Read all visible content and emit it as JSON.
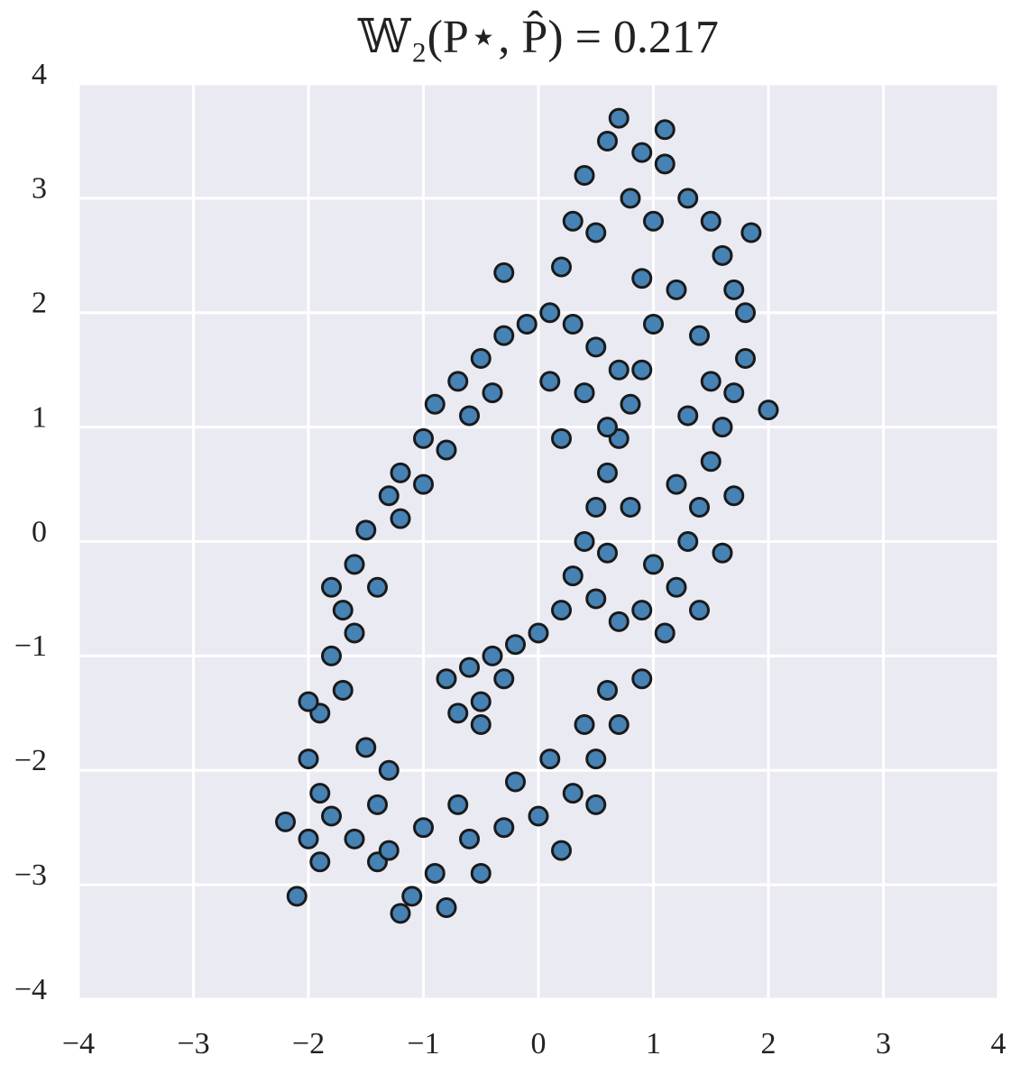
{
  "chart_data": {
    "type": "scatter",
    "title": "𝕎₂(P⋆, P̂) = 0.217",
    "color": "#4682b4",
    "edgecolor": "#1a1a1a",
    "grid": true,
    "xlim": [
      -4,
      4
    ],
    "ylim": [
      -4,
      4
    ],
    "xticks": [
      {
        "value": -4,
        "label": "−4"
      },
      {
        "value": -3,
        "label": "−3"
      },
      {
        "value": -2,
        "label": "−2"
      },
      {
        "value": -1,
        "label": "−1"
      },
      0,
      1,
      2,
      3,
      4
    ],
    "yticks": [
      {
        "value": -4,
        "label": "−4"
      },
      {
        "value": -3,
        "label": "−3"
      },
      {
        "value": -2,
        "label": "−2"
      },
      {
        "value": -1,
        "label": "−1"
      },
      0,
      1,
      2,
      3,
      4
    ],
    "x": [
      -2.2,
      -2.1,
      -2.0,
      -1.9,
      -2.0,
      -1.9,
      -1.8,
      -1.7,
      -1.6,
      -1.5,
      -1.3,
      -1.2,
      -1.0,
      -0.9,
      -0.7,
      -0.5,
      -0.3,
      -0.1,
      0.1,
      0.2,
      0.3,
      0.4,
      0.6,
      0.7,
      0.9,
      1.1,
      1.3,
      1.5,
      1.6,
      1.7,
      1.8,
      1.8,
      1.7,
      1.6,
      1.5,
      1.4,
      1.3,
      1.2,
      1.1,
      0.9,
      0.7,
      0.5,
      0.3,
      0.0,
      -0.3,
      -0.6,
      -0.9,
      -1.1,
      -1.2,
      -1.4,
      -1.6,
      -1.8,
      2.0,
      1.85,
      -0.3,
      -1.7,
      -1.5,
      -1.4,
      -1.3,
      -1.6,
      -1.4,
      -1.2,
      -1.0,
      -0.8,
      -0.6,
      -0.4,
      -0.8,
      -0.5,
      -0.7,
      -1.0,
      -1.3,
      -1.9,
      -2.0,
      -1.8,
      1.0,
      0.8,
      0.5,
      1.2,
      1.4,
      1.5,
      1.3,
      1.2,
      1.0,
      0.9,
      0.6,
      0.4,
      0.1,
      -0.2,
      1.7,
      1.6,
      1.4,
      0.5,
      0.2,
      1.1,
      0.3,
      0.5,
      0.7,
      0.8,
      0.7,
      0.6,
      0.5,
      0.4,
      0.3,
      0.2,
      0.0,
      -0.2,
      -0.4,
      -0.6,
      -0.8,
      -0.7,
      -0.5,
      -0.3,
      0.1,
      0.4,
      0.6,
      0.5,
      0.7,
      0.8,
      0.6,
      -0.5,
      0.2,
      1.0,
      0.9,
      0.9
    ],
    "y": [
      -2.45,
      -3.1,
      -2.6,
      -2.2,
      -1.9,
      -1.5,
      -1.0,
      -0.6,
      -0.2,
      0.1,
      0.4,
      0.6,
      0.9,
      1.2,
      1.4,
      1.6,
      1.8,
      1.9,
      2.0,
      2.4,
      2.8,
      3.2,
      3.5,
      3.7,
      3.4,
      3.3,
      3.0,
      2.8,
      2.5,
      2.2,
      2.0,
      1.6,
      1.3,
      1.0,
      0.7,
      0.3,
      0.0,
      -0.4,
      -0.8,
      -1.2,
      -1.6,
      -1.9,
      -2.2,
      -2.4,
      -2.5,
      -2.6,
      -2.9,
      -3.1,
      -3.25,
      -2.8,
      -2.6,
      -2.4,
      1.15,
      2.7,
      2.35,
      -1.3,
      -1.8,
      -2.3,
      -2.0,
      -0.8,
      -0.4,
      0.2,
      0.5,
      0.8,
      1.1,
      1.3,
      -3.2,
      -2.9,
      -2.3,
      -2.5,
      -2.7,
      -2.8,
      -1.4,
      -0.4,
      2.8,
      3.0,
      2.7,
      2.2,
      1.8,
      1.4,
      1.1,
      0.5,
      -0.2,
      -0.6,
      -1.3,
      -1.6,
      -1.9,
      -2.1,
      0.4,
      -0.1,
      -0.6,
      -2.3,
      -2.7,
      3.6,
      1.9,
      1.7,
      1.5,
      1.2,
      0.9,
      0.6,
      0.3,
      0.0,
      -0.3,
      -0.6,
      -0.8,
      -0.9,
      -1.0,
      -1.1,
      -1.2,
      -1.5,
      -1.4,
      -1.2,
      1.4,
      1.3,
      1.0,
      -0.5,
      -0.7,
      0.3,
      -0.1,
      -1.6,
      0.9,
      1.9,
      1.5,
      2.3
    ]
  }
}
